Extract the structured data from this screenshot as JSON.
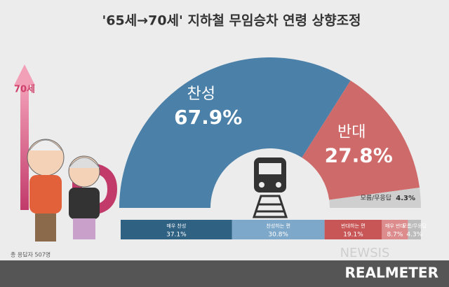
{
  "title": "'65세→70세' 지하철 무임승차 연령 상향조정",
  "arrow_label": "70세",
  "note": "총 응답자 507명",
  "logo": "REALMETER",
  "watermark": "NEWSIS",
  "chart_data": [
    {
      "type": "pie",
      "half": true,
      "categories": [
        "찬성",
        "반대",
        "모름/무응답"
      ],
      "values": [
        67.9,
        27.8,
        4.3
      ],
      "value_labels": [
        "67.9%",
        "27.8%",
        "4.3%"
      ],
      "colors": [
        "#4b80a9",
        "#cf6a6a",
        "#cfcfcf"
      ]
    },
    {
      "type": "bar",
      "orientation": "horizontal",
      "stacked": true,
      "categories": [
        "매우 찬성",
        "찬성하는 편",
        "반대하는 편",
        "매우 반대",
        "모름/무응답"
      ],
      "values": [
        37.1,
        30.8,
        19.1,
        8.7,
        4.3
      ],
      "value_labels": [
        "37.1%",
        "30.8%",
        "19.1%",
        "8.7%",
        "4.3%"
      ],
      "colors": [
        "#2f6183",
        "#7ea8c9",
        "#c85656",
        "#dc8c8c",
        "#bcbcbc"
      ]
    }
  ]
}
